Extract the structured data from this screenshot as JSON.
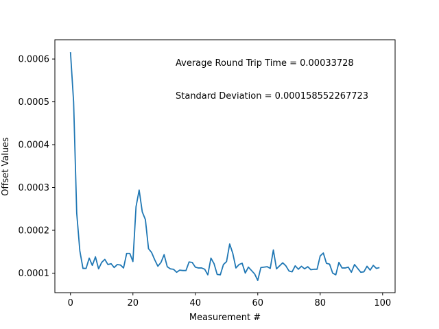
{
  "chart_data": {
    "type": "line",
    "title": "",
    "xlabel": "Measurement #",
    "ylabel": "Offset Values",
    "xlim": [
      -5,
      104
    ],
    "ylim": [
      5.43e-05,
      0.000645
    ],
    "x_ticks": [
      0,
      20,
      40,
      60,
      80,
      100
    ],
    "x_tick_labels": [
      "0",
      "20",
      "40",
      "60",
      "80",
      "100"
    ],
    "y_ticks": [
      0.0001,
      0.0002,
      0.0003,
      0.0004,
      0.0005,
      0.0006
    ],
    "y_tick_labels": [
      "0.0001",
      "0.0002",
      "0.0003",
      "0.0004",
      "0.0005",
      "0.0006"
    ],
    "grid": false,
    "legend": "none",
    "annotations": [
      "Average Round Trip Time = 0.00033728",
      "Standard Deviation = 0.000158552267723"
    ],
    "series": [
      {
        "color": "#1f77b4",
        "x": [
          0,
          1,
          2,
          3,
          4,
          5,
          6,
          7,
          8,
          9,
          10,
          11,
          12,
          13,
          14,
          15,
          16,
          17,
          18,
          19,
          20,
          21,
          22,
          23,
          24,
          25,
          26,
          27,
          28,
          29,
          30,
          31,
          32,
          33,
          34,
          35,
          36,
          37,
          38,
          39,
          40,
          41,
          42,
          43,
          44,
          45,
          46,
          47,
          48,
          49,
          50,
          51,
          52,
          53,
          54,
          55,
          56,
          57,
          58,
          59,
          60,
          61,
          62,
          63,
          64,
          65,
          66,
          67,
          68,
          69,
          70,
          71,
          72,
          73,
          74,
          75,
          76,
          77,
          78,
          79,
          80,
          81,
          82,
          83,
          84,
          85,
          86,
          87,
          88,
          89,
          90,
          91,
          92,
          93,
          94,
          95,
          96,
          97,
          98,
          99
        ],
        "values": [
          0.000616,
          0.0005,
          0.00024,
          0.000152,
          0.000111,
          0.000111,
          0.000135,
          0.000118,
          0.000138,
          0.00011,
          0.000125,
          0.000132,
          0.00012,
          0.000122,
          0.000113,
          0.00012,
          0.000119,
          0.000112,
          0.000146,
          0.000146,
          0.000127,
          0.000255,
          0.000294,
          0.000243,
          0.000225,
          0.000157,
          0.000148,
          0.000131,
          0.000116,
          0.000125,
          0.000143,
          0.000115,
          0.00011,
          0.000109,
          0.000102,
          0.000107,
          0.000106,
          0.000106,
          0.000126,
          0.000125,
          0.000114,
          0.000112,
          0.000112,
          0.000109,
          9.6e-05,
          0.000135,
          0.000122,
          9.7e-05,
          9.6e-05,
          0.00012,
          0.000127,
          0.000168,
          0.000146,
          0.000112,
          0.00012,
          0.000123,
          0.0001,
          0.000114,
          0.000106,
          9.8e-05,
          8.3e-05,
          0.000113,
          0.000114,
          0.000115,
          0.000111,
          0.000154,
          0.00011,
          0.000117,
          0.000124,
          0.000117,
          0.000105,
          0.000103,
          0.000117,
          0.000109,
          0.000116,
          0.00011,
          0.000115,
          0.000108,
          0.000109,
          0.000109,
          0.00014,
          0.000147,
          0.000123,
          0.000121,
          0.0001,
          9.6e-05,
          0.000125,
          0.000112,
          0.000112,
          0.000114,
          0.000102,
          0.00012,
          0.000111,
          0.000102,
          0.000103,
          0.000116,
          0.000107,
          0.000118,
          0.000111,
          0.000113
        ]
      }
    ]
  }
}
